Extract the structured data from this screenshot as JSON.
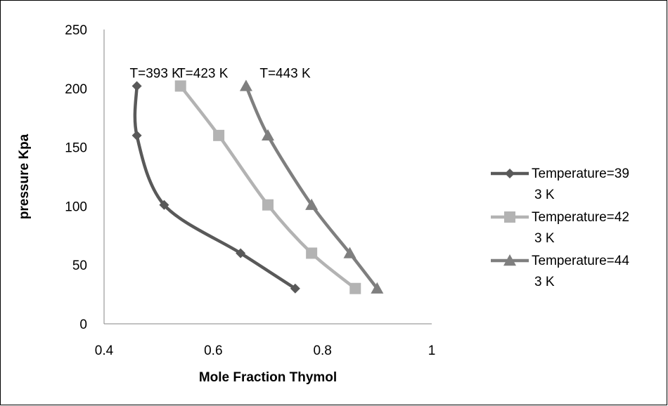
{
  "chart_data": {
    "type": "line",
    "xlabel": "Mole Fraction Thymol",
    "ylabel": "pressure Kpa",
    "xlim": [
      0.4,
      1
    ],
    "ylim": [
      0,
      250
    ],
    "xticks": [
      "0.4",
      "0.6",
      "0.8",
      "1"
    ],
    "yticks": [
      "0",
      "50",
      "100",
      "150",
      "200",
      "250"
    ],
    "grid": false,
    "legend_position": "right",
    "series": [
      {
        "name": "Temperature=393 K",
        "legend_lines": [
          "Temperature=39",
          "3 K"
        ],
        "color": "#595959",
        "marker": "diamond",
        "x": [
          0.75,
          0.65,
          0.51,
          0.46,
          0.46
        ],
        "y": [
          30,
          60,
          101,
          160,
          202
        ]
      },
      {
        "name": "Temperature=423 K",
        "legend_lines": [
          "Temperature=42",
          "3 K"
        ],
        "color": "#b3b3b3",
        "marker": "square",
        "x": [
          0.86,
          0.78,
          0.7,
          0.61,
          0.54
        ],
        "y": [
          30,
          60,
          101,
          160,
          202
        ]
      },
      {
        "name": "Temperature=443 K",
        "legend_lines": [
          "Temperature=44",
          "3 K"
        ],
        "color": "#7f7f7f",
        "marker": "triangle",
        "x": [
          0.9,
          0.85,
          0.78,
          0.7,
          0.66
        ],
        "y": [
          30,
          60,
          101,
          160,
          202
        ]
      }
    ],
    "annotations": [
      {
        "text": "T=393 K",
        "x": 0.447,
        "y": 209
      },
      {
        "text": "T=423 K",
        "x": 0.534,
        "y": 209
      },
      {
        "text": "T=443 K",
        "x": 0.685,
        "y": 209
      }
    ]
  }
}
